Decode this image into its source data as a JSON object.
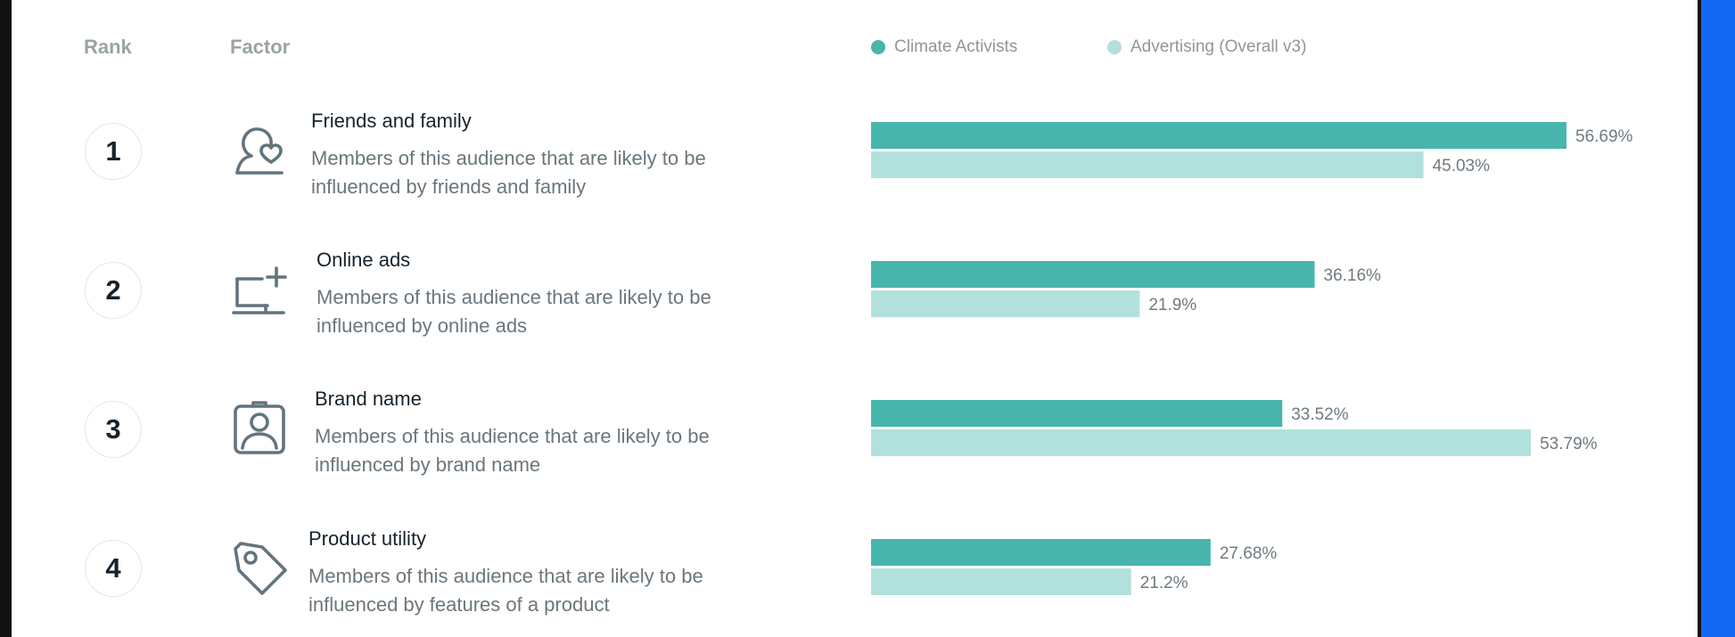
{
  "header": {
    "rank_label": "Rank",
    "factor_label": "Factor"
  },
  "colors": {
    "primary": "#47b5ab",
    "secondary": "#b2e0dc"
  },
  "rows": [
    {
      "rank": "1",
      "icon": "friends-heart-icon",
      "title": "Friends and family",
      "description": "Members of this audience that are likely to be influenced by friends and family"
    },
    {
      "rank": "2",
      "icon": "laptop-plus-icon",
      "title": "Online ads",
      "description": "Members of this audience that are likely to be influenced by online ads"
    },
    {
      "rank": "3",
      "icon": "badge-person-icon",
      "title": "Brand name",
      "description": "Members of this audience that are likely to be influenced by brand name"
    },
    {
      "rank": "4",
      "icon": "price-tag-icon",
      "title": "Product utility",
      "description": "Members of this audience that are likely to be influenced by features of a product"
    }
  ],
  "chart_data": {
    "type": "bar",
    "orientation": "horizontal",
    "categories": [
      "Friends and family",
      "Online ads",
      "Brand name",
      "Product utility"
    ],
    "series": [
      {
        "name": "Climate Activists",
        "values": [
          56.69,
          36.16,
          33.52,
          27.68
        ],
        "labels": [
          "56.69%",
          "36.16%",
          "33.52%",
          "27.68%"
        ]
      },
      {
        "name": "Advertising (Overall v3)",
        "values": [
          45.03,
          21.9,
          53.79,
          21.2
        ],
        "labels": [
          "45.03%",
          "21.9%",
          "53.79%",
          "21.2%"
        ]
      }
    ],
    "legend": "top",
    "grid": false
  }
}
